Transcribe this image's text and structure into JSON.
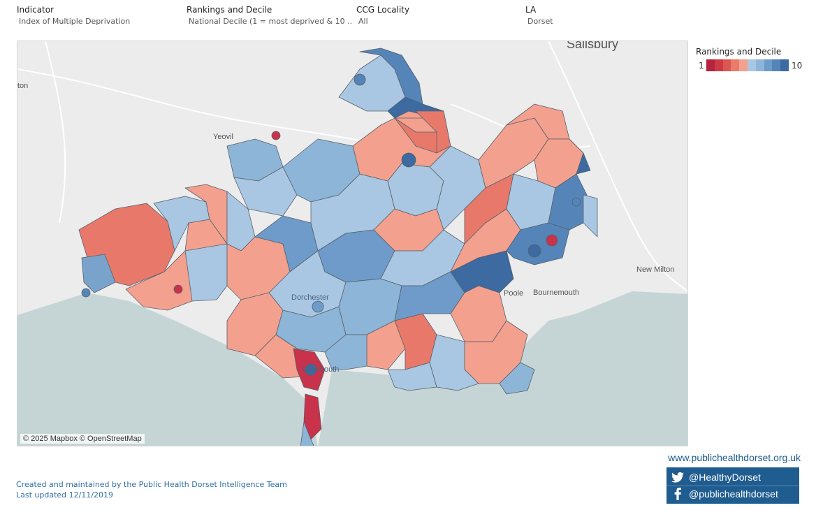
{
  "filters": [
    {
      "label": "Indicator",
      "value": "Index of Multiple Deprivation"
    },
    {
      "label": "Rankings and Decile",
      "value": "National Decile (1 = most deprived & 10 .."
    },
    {
      "label": "CCG Locality",
      "value": "All"
    },
    {
      "label": "LA",
      "value": "Dorset"
    }
  ],
  "legend": {
    "title": "Rankings and Decile",
    "min_label": "1",
    "max_label": "10",
    "colors": [
      "#b7223c",
      "#cc3a46",
      "#dc5651",
      "#ea7a6a",
      "#f4a08e",
      "#a9c7e2",
      "#8db5d8",
      "#6e9bc9",
      "#5585b8",
      "#3c6aa1"
    ]
  },
  "map": {
    "attribution": "© 2025 Mapbox © OpenStreetMap",
    "places": [
      "Salisbury",
      "Yeovil",
      "Poole",
      "Bournemouth",
      "New Milton",
      "Dorchester",
      "Weymouth",
      "ton"
    ]
  },
  "footer": {
    "credit": "Created and maintained by the Public Health Dorset Intelligence Team",
    "updated": "Last updated 12/11/2019"
  },
  "links": {
    "website": "www.publichealthdorset.org.uk",
    "twitter": "@HealthyDorset",
    "facebook": "@publichealthdorset"
  },
  "colors": {
    "sea": "#c5d5d6",
    "land": "#ececec",
    "brand": "#1f5c8f",
    "text_link": "#2f6fa3"
  }
}
